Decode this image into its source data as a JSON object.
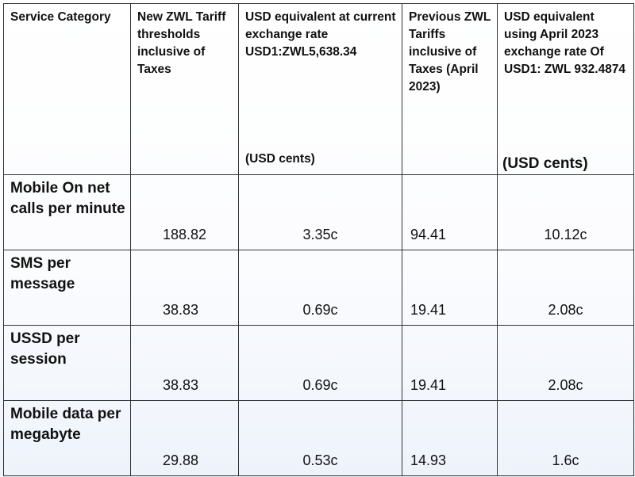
{
  "table": {
    "headers": [
      {
        "text": "Service Category",
        "unit": ""
      },
      {
        "text": "New ZWL Tariff thresholds inclusive of Taxes",
        "unit": ""
      },
      {
        "text": "USD equivalent at current exchange rate USD1:ZWL5,638.34",
        "unit": "(USD cents)"
      },
      {
        "text": "Previous ZWL Tariffs inclusive of Taxes (April 2023)",
        "unit": ""
      },
      {
        "text": "USD equivalent using April 2023 exchange rate Of USD1: ZWL 932.4874",
        "unit": "(USD cents)"
      }
    ],
    "rows": [
      {
        "category": "Mobile On net calls per minute",
        "new_zwl": "188.82",
        "usd_current": "3.35c",
        "prev_zwl": "94.41",
        "usd_april": "10.12c"
      },
      {
        "category": "SMS per message",
        "new_zwl": "38.83",
        "usd_current": "0.69c",
        "prev_zwl": "19.41",
        "usd_april": "2.08c"
      },
      {
        "category": "USSD per session",
        "new_zwl": "38.83",
        "usd_current": "0.69c",
        "prev_zwl": "19.41",
        "usd_april": "2.08c"
      },
      {
        "category": "Mobile data per megabyte",
        "new_zwl": "29.88",
        "usd_current": "0.53c",
        "prev_zwl": "14.93",
        "usd_april": "1.6c"
      }
    ]
  }
}
